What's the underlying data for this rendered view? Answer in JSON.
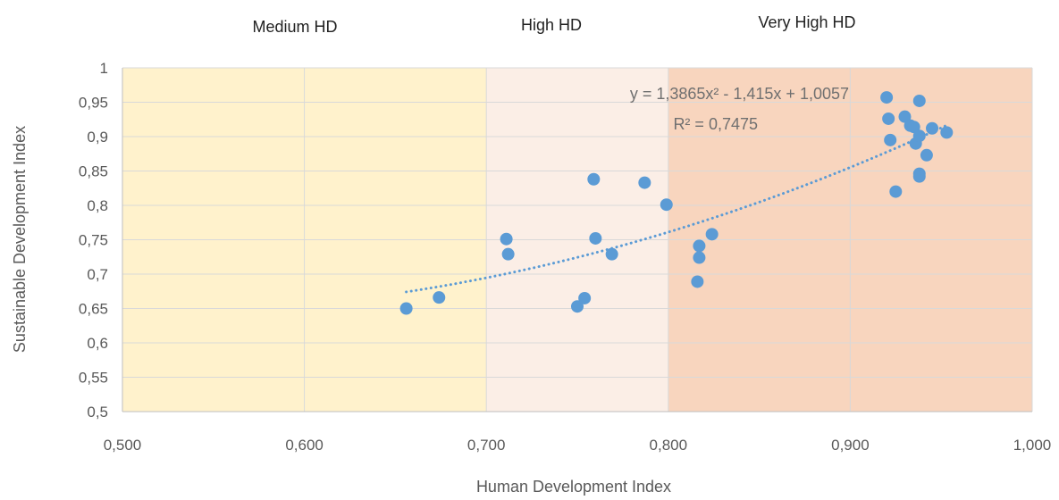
{
  "chart_data": {
    "type": "scatter",
    "title": "",
    "xlabel": "Human Development Index",
    "ylabel": "Sustainable Development Index",
    "xlim": [
      0.5,
      1.0
    ],
    "ylim": [
      0.5,
      1.0
    ],
    "x_ticks": [
      "0,500",
      "0,600",
      "0,700",
      "0,800",
      "0,900",
      "1,000"
    ],
    "y_ticks": [
      "0,5",
      "0,55",
      "0,6",
      "0,65",
      "0,7",
      "0,75",
      "0,8",
      "0,85",
      "0,9",
      "0,95",
      "1"
    ],
    "grid": true,
    "regions": [
      {
        "label": "Medium HD",
        "x_range": [
          0.5,
          0.7
        ],
        "color": "#FFF2CC"
      },
      {
        "label": "High HD",
        "x_range": [
          0.7,
          0.8
        ],
        "color": "#FBEEE6"
      },
      {
        "label": "Very High HD",
        "x_range": [
          0.8,
          1.0
        ],
        "color": "#F8D5BE"
      }
    ],
    "marker_color": "#5B9BD5",
    "points": [
      {
        "x": 0.656,
        "y": 0.65
      },
      {
        "x": 0.674,
        "y": 0.666
      },
      {
        "x": 0.711,
        "y": 0.751
      },
      {
        "x": 0.712,
        "y": 0.729
      },
      {
        "x": 0.75,
        "y": 0.653
      },
      {
        "x": 0.754,
        "y": 0.665
      },
      {
        "x": 0.759,
        "y": 0.838
      },
      {
        "x": 0.76,
        "y": 0.752
      },
      {
        "x": 0.769,
        "y": 0.729
      },
      {
        "x": 0.787,
        "y": 0.833
      },
      {
        "x": 0.799,
        "y": 0.801
      },
      {
        "x": 0.816,
        "y": 0.689
      },
      {
        "x": 0.817,
        "y": 0.741
      },
      {
        "x": 0.817,
        "y": 0.724
      },
      {
        "x": 0.824,
        "y": 0.758
      },
      {
        "x": 0.92,
        "y": 0.957
      },
      {
        "x": 0.921,
        "y": 0.926
      },
      {
        "x": 0.922,
        "y": 0.895
      },
      {
        "x": 0.925,
        "y": 0.82
      },
      {
        "x": 0.93,
        "y": 0.929
      },
      {
        "x": 0.933,
        "y": 0.916
      },
      {
        "x": 0.935,
        "y": 0.914
      },
      {
        "x": 0.936,
        "y": 0.89
      },
      {
        "x": 0.938,
        "y": 0.952
      },
      {
        "x": 0.938,
        "y": 0.901
      },
      {
        "x": 0.938,
        "y": 0.846
      },
      {
        "x": 0.938,
        "y": 0.842
      },
      {
        "x": 0.942,
        "y": 0.873
      },
      {
        "x": 0.945,
        "y": 0.912
      },
      {
        "x": 0.953,
        "y": 0.906
      }
    ],
    "trendline": {
      "type": "polynomial",
      "coefficients": [
        1.3865,
        -1.415,
        1.0057
      ],
      "x_range": [
        0.656,
        0.953
      ],
      "color": "#5B9BD5",
      "style": "dotted",
      "equation_text": "y = 1,3865x² - 1,415x + 1,0057",
      "r2_text": "R² = 0,7475"
    }
  }
}
